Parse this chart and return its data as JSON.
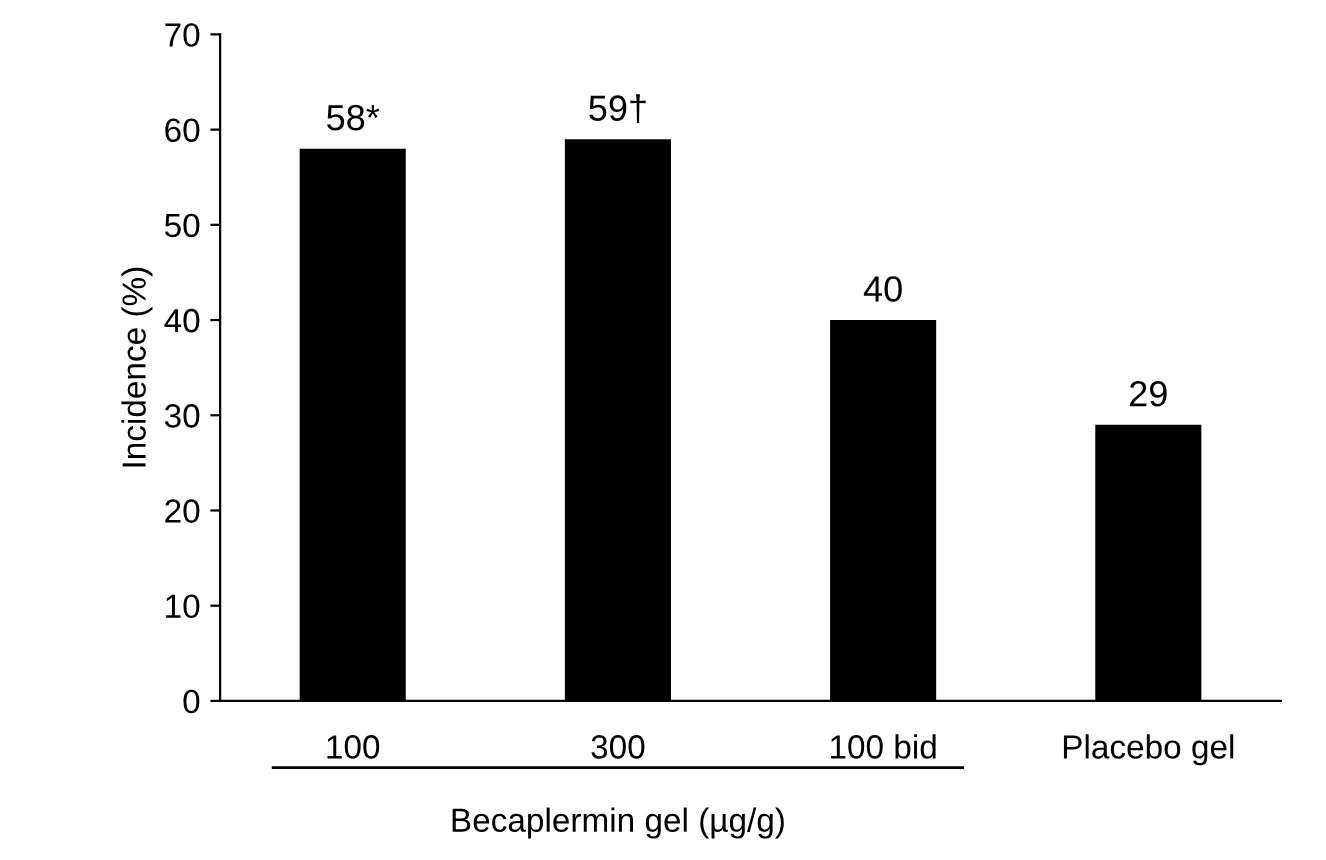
{
  "chart_data": {
    "type": "bar",
    "categories": [
      "100",
      "300",
      "100 bid",
      "Placebo gel"
    ],
    "values": [
      58,
      59,
      40,
      29
    ],
    "value_labels": [
      "58*",
      "59†",
      "40",
      "29"
    ],
    "color": "#000000",
    "ylabel": "Incidence (%)",
    "xlabel": "Becaplermin gel (µg/g)",
    "ylim": [
      0,
      70
    ],
    "yticks": [
      0,
      10,
      20,
      30,
      40,
      50,
      60,
      70
    ],
    "grid": false,
    "legend": false
  }
}
